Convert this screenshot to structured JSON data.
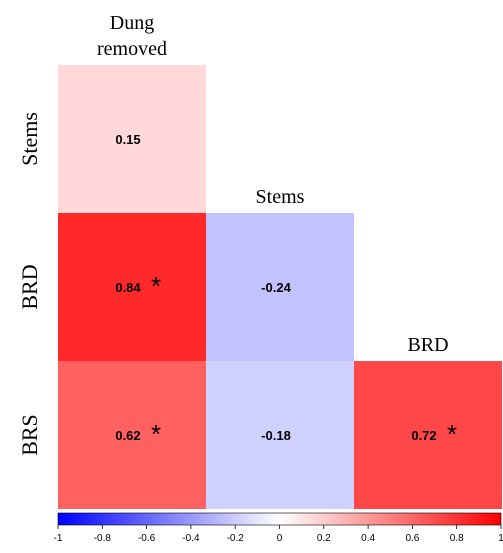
{
  "chart_data": {
    "type": "heatmap",
    "subtype": "lower-triangular correlation matrix",
    "column_headers": [
      {
        "lines": [
          "Dung",
          "removed"
        ]
      },
      {
        "lines": [
          "Stems"
        ]
      },
      {
        "lines": [
          "BRD"
        ]
      }
    ],
    "row_headers": [
      "Stems",
      "BRD",
      "BRS"
    ],
    "cells": [
      {
        "row": 0,
        "col": 0,
        "value": 0.15,
        "label": "0.15",
        "significant": false
      },
      {
        "row": 1,
        "col": 0,
        "value": 0.84,
        "label": "0.84",
        "significant": true
      },
      {
        "row": 1,
        "col": 1,
        "value": -0.24,
        "label": "-0.24",
        "significant": false
      },
      {
        "row": 2,
        "col": 0,
        "value": 0.62,
        "label": "0.62",
        "significant": true
      },
      {
        "row": 2,
        "col": 1,
        "value": -0.18,
        "label": "-0.18",
        "significant": false
      },
      {
        "row": 2,
        "col": 2,
        "value": 0.72,
        "label": "0.72",
        "significant": true
      }
    ],
    "significance_marker": "*",
    "color_scale": {
      "min": -1,
      "max": 1,
      "low_color": "#0000ff",
      "mid_color": "#ffffff",
      "high_color": "#ff0000",
      "ticks": [
        "-1",
        "-0.8",
        "-0.6",
        "-0.4",
        "-0.2",
        "0",
        "0.2",
        "0.4",
        "0.6",
        "0.8",
        "1"
      ]
    }
  }
}
